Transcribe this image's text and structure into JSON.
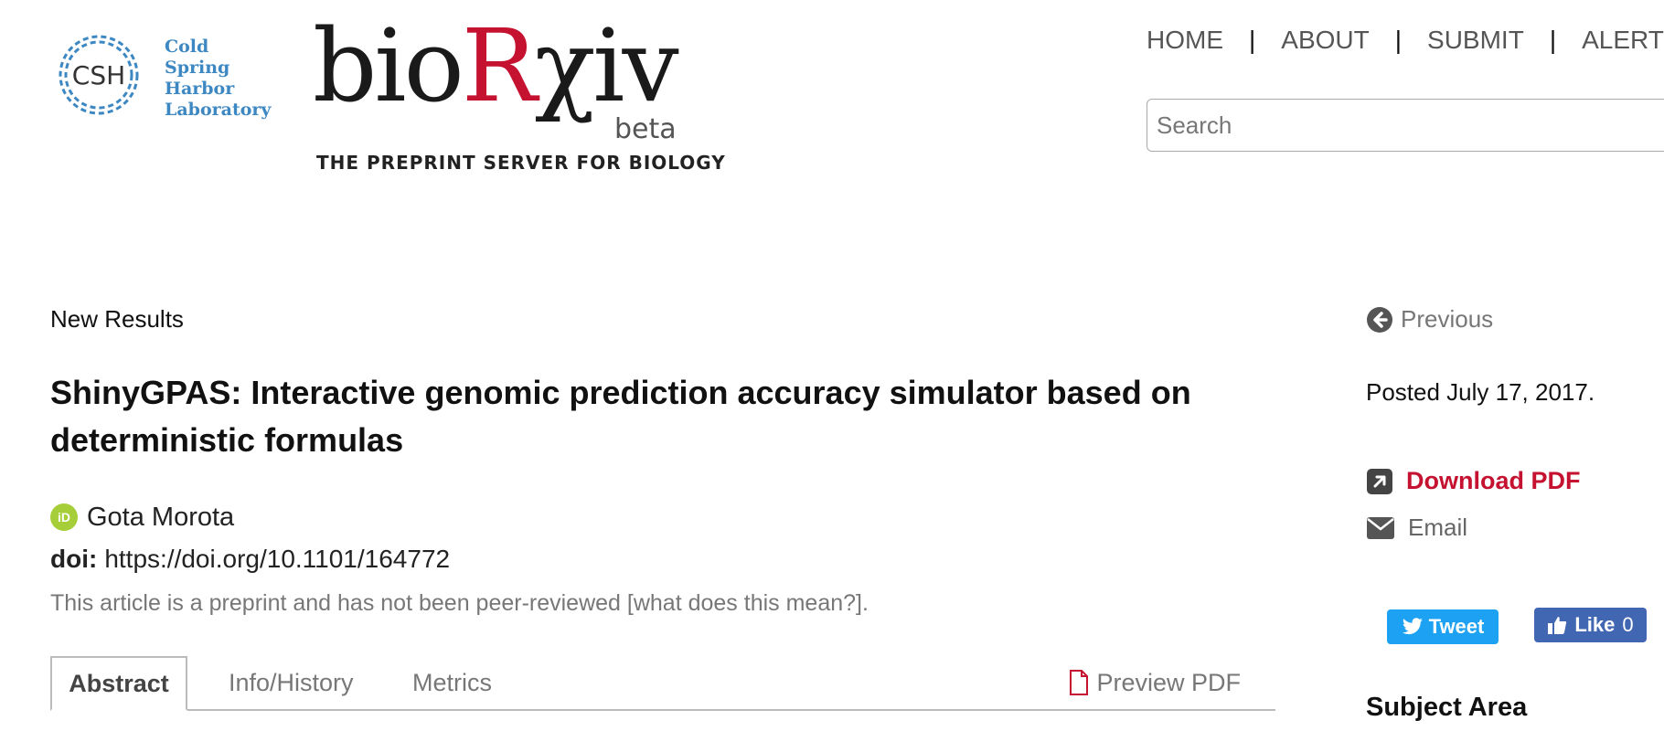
{
  "header": {
    "csh_logo_lines": [
      "Cold",
      "Spring",
      "Harbor",
      "Laboratory"
    ],
    "csh_monogram": "CSH",
    "brand": {
      "bio": "bio",
      "r": "R",
      "xiv": "χiv",
      "beta": "beta",
      "tagline": "THE PREPRINT SERVER FOR BIOLOGY"
    },
    "nav": [
      "HOME",
      "ABOUT",
      "SUBMIT",
      "ALERTS /"
    ],
    "search_placeholder": "Search"
  },
  "article": {
    "section": "New Results",
    "title": "ShinyGPAS: Interactive genomic prediction accuracy simulator based on deterministic formulas",
    "author": "Gota Morota",
    "orcid_icon": "orcid-icon",
    "doi_label": "doi:",
    "doi": "https://doi.org/10.1101/164772",
    "preprint_note": "This article is a preprint and has not been peer-reviewed [what does this mean?]."
  },
  "tabs": {
    "abstract": "Abstract",
    "info": "Info/History",
    "metrics": "Metrics",
    "preview_pdf": "Preview PDF"
  },
  "sidebar": {
    "previous": "Previous",
    "posted": "Posted July 17, 2017.",
    "download_pdf": "Download PDF",
    "email": "Email",
    "tweet": "Tweet",
    "like": "Like",
    "like_count": "0",
    "subject_area": "Subject Area"
  },
  "colors": {
    "brand_red": "#c41230",
    "csh_blue": "#3d88c2",
    "orcid_green": "#a6ce39",
    "twitter_blue": "#1da1f2",
    "facebook_blue": "#4267b2"
  }
}
